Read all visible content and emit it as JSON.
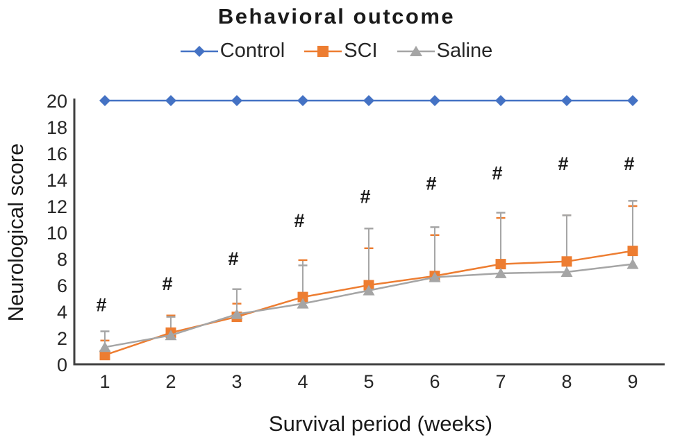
{
  "chart_data": {
    "type": "line",
    "title": "Behavioral outcome",
    "xlabel": "Survival period (weeks)",
    "ylabel": "Neurological score",
    "x": [
      1,
      2,
      3,
      4,
      5,
      6,
      7,
      8,
      9
    ],
    "xlim": [
      1,
      9
    ],
    "ylim": [
      0,
      20
    ],
    "ytick_step": 2,
    "yticks": [
      0,
      2,
      4,
      6,
      8,
      10,
      12,
      14,
      16,
      18,
      20
    ],
    "grid": false,
    "legend_position": "top-center",
    "series": [
      {
        "name": "Control",
        "color": "#4472C4",
        "marker": "diamond",
        "values": [
          20,
          20,
          20,
          20,
          20,
          20,
          20,
          20,
          20
        ],
        "upper_error": [
          0,
          0,
          0,
          0,
          0,
          0,
          0,
          0,
          0
        ]
      },
      {
        "name": "SCI",
        "color": "#ED7D31",
        "marker": "square",
        "values": [
          0.7,
          2.4,
          3.6,
          5.1,
          6.0,
          6.7,
          7.6,
          7.8,
          8.6
        ],
        "upper_error": [
          1.1,
          1.3,
          1.0,
          2.8,
          2.8,
          3.1,
          3.5,
          3.5,
          3.4
        ]
      },
      {
        "name": "Saline",
        "color": "#A5A5A5",
        "marker": "triangle",
        "values": [
          1.3,
          2.2,
          3.8,
          4.6,
          5.6,
          6.6,
          6.9,
          7.0,
          7.6
        ],
        "upper_error": [
          1.2,
          1.4,
          1.9,
          2.9,
          4.7,
          3.8,
          4.6,
          4.3,
          4.8
        ]
      }
    ],
    "annotations": {
      "symbol": "#",
      "note": "significance marker above each week",
      "x": [
        1,
        2,
        3,
        4,
        5,
        6,
        7,
        8,
        9
      ],
      "y": [
        4.5,
        6.1,
        8.0,
        10.9,
        12.7,
        13.7,
        14.5,
        15.2,
        15.2
      ]
    }
  },
  "colors": {
    "axis": "#3f3f3f",
    "error_bar": "#A6A6A6",
    "tick_text": "#262626",
    "annotation_text": "#1a1a1a"
  }
}
